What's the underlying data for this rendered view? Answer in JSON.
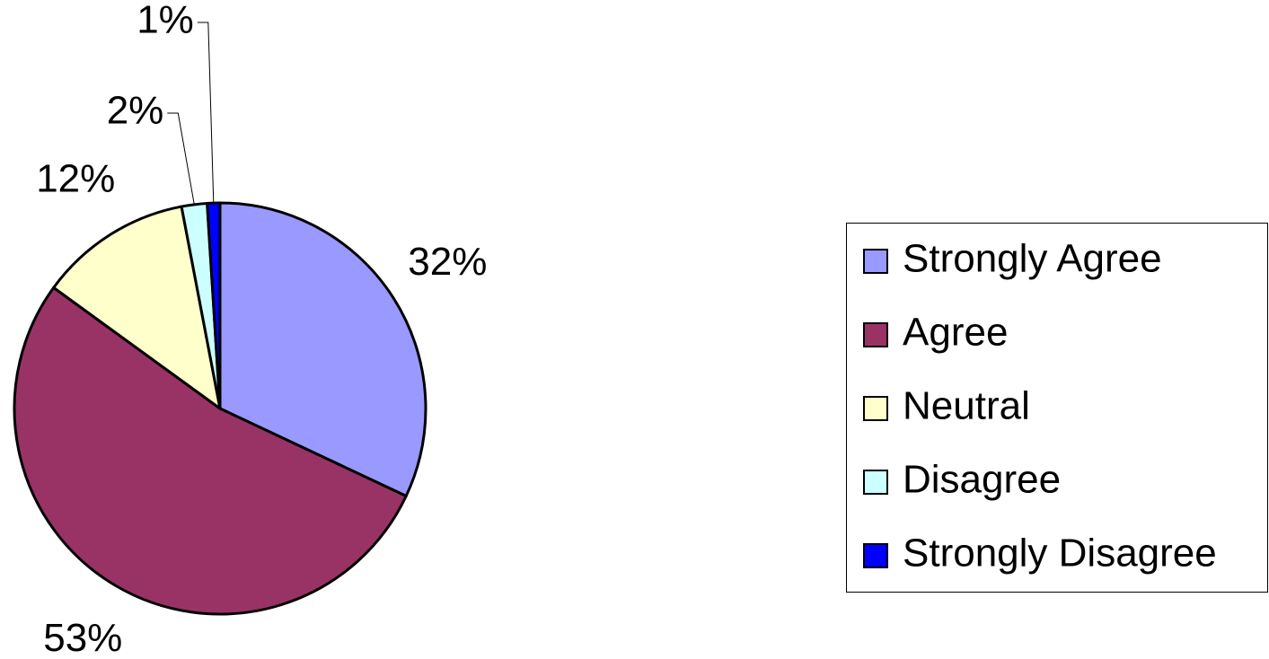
{
  "chart_data": {
    "type": "pie",
    "categories": [
      "Strongly Agree",
      "Agree",
      "Neutral",
      "Disagree",
      "Strongly Disagree"
    ],
    "values": [
      32,
      53,
      12,
      2,
      1
    ],
    "value_labels": [
      "32%",
      "53%",
      "12%",
      "2%",
      "1%"
    ],
    "colors": [
      "#9999ff",
      "#993366",
      "#ffffcc",
      "#ccffff",
      "#0000ff"
    ],
    "legend": "right"
  }
}
